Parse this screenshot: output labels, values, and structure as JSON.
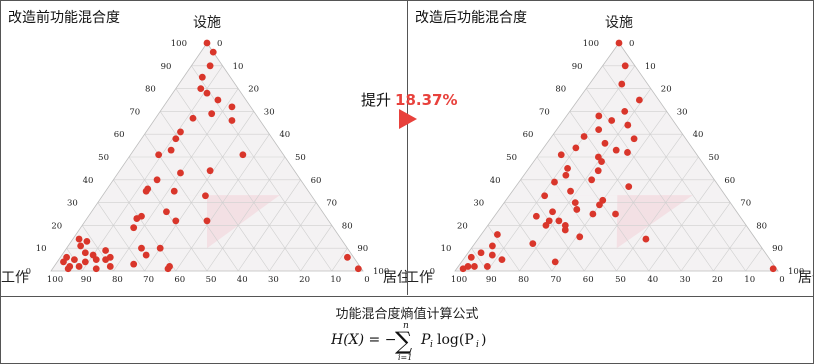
{
  "improvement": {
    "prefix": "提升",
    "value": "18.37%",
    "color": "#e8413c"
  },
  "formula": {
    "title": "功能混合度熵值计算公式",
    "lhs": "H(X) = −",
    "sum_top": "n",
    "sum_bottom": "i=1",
    "term": "P",
    "term_sub": "i",
    "log": "log(P",
    "log_sub": "i",
    "close": ")"
  },
  "chart_data": [
    {
      "type": "scatter",
      "subtype": "ternary",
      "title": "改造前功能混合度",
      "axes": {
        "top": "设施",
        "left": "工作",
        "right": "居住"
      },
      "ticks": [
        0,
        10,
        20,
        30,
        40,
        50,
        60,
        70,
        80,
        90,
        100
      ],
      "grid": true,
      "marker_color": "#d9362b",
      "highlight_region": {
        "color": "#f3d9df",
        "vertices": [
          [
            33.3,
            33.3,
            33.3
          ],
          [
            10,
            45,
            45
          ],
          [
            33.3,
            10,
            56.7
          ],
          [
            33.3,
            56.7,
            10
          ]
        ]
      },
      "points_note": "Each point: [设施, 工作, 居住] in percent",
      "points": [
        [
          100,
          0,
          0
        ],
        [
          96,
          0,
          4
        ],
        [
          90,
          4,
          6
        ],
        [
          85,
          9,
          6
        ],
        [
          80,
          12,
          8
        ],
        [
          78,
          11,
          11
        ],
        [
          75,
          9,
          16
        ],
        [
          72,
          6,
          22
        ],
        [
          69,
          14,
          17
        ],
        [
          67,
          21,
          12
        ],
        [
          66,
          9,
          25
        ],
        [
          61,
          28,
          11
        ],
        [
          58,
          31,
          11
        ],
        [
          53,
          35,
          12
        ],
        [
          51,
          40,
          9
        ],
        [
          51,
          13,
          36
        ],
        [
          44,
          27,
          29
        ],
        [
          43,
          37,
          20
        ],
        [
          40,
          46,
          14
        ],
        [
          36,
          51,
          13
        ],
        [
          35,
          52,
          13
        ],
        [
          35,
          43,
          22
        ],
        [
          33,
          34,
          33
        ],
        [
          26,
          50,
          24
        ],
        [
          24,
          59,
          17
        ],
        [
          23,
          61,
          16
        ],
        [
          22,
          49,
          29
        ],
        [
          22,
          39,
          39
        ],
        [
          19,
          64,
          17
        ],
        [
          14,
          84,
          2
        ],
        [
          13,
          82,
          5
        ],
        [
          11,
          85,
          4
        ],
        [
          10,
          66,
          24
        ],
        [
          10,
          60,
          30
        ],
        [
          9,
          78,
          13
        ],
        [
          8,
          85,
          7
        ],
        [
          7,
          83,
          10
        ],
        [
          7,
          66,
          27
        ],
        [
          6,
          92,
          2
        ],
        [
          6,
          78,
          16
        ],
        [
          5,
          90,
          5
        ],
        [
          5,
          83,
          12
        ],
        [
          5,
          80,
          15
        ],
        [
          4,
          94,
          2
        ],
        [
          4,
          87,
          9
        ],
        [
          3,
          72,
          25
        ],
        [
          2,
          93,
          5
        ],
        [
          2,
          90,
          8
        ],
        [
          2,
          80,
          18
        ],
        [
          2,
          61,
          37
        ],
        [
          1,
          94,
          5
        ],
        [
          1,
          85,
          14
        ],
        [
          1,
          62,
          37
        ],
        [
          6,
          2,
          92
        ],
        [
          1,
          1,
          98
        ]
      ]
    },
    {
      "type": "scatter",
      "subtype": "ternary",
      "title": "改造后功能混合度",
      "axes": {
        "top": "设施",
        "left": "工作",
        "right": "居住"
      },
      "ticks": [
        0,
        10,
        20,
        30,
        40,
        50,
        60,
        70,
        80,
        90,
        100
      ],
      "grid": true,
      "marker_color": "#d9362b",
      "highlight_region": {
        "color": "#f3d9df",
        "vertices": [
          [
            33.3,
            33.3,
            33.3
          ],
          [
            10,
            45,
            45
          ],
          [
            33.3,
            10,
            56.7
          ],
          [
            33.3,
            56.7,
            10
          ]
        ]
      },
      "points_note": "Each point: [设施, 工作, 居住] in percent",
      "points": [
        [
          100,
          0,
          0
        ],
        [
          90,
          3,
          7
        ],
        [
          82,
          8,
          10
        ],
        [
          75,
          6,
          19
        ],
        [
          70,
          13,
          17
        ],
        [
          68,
          22,
          10
        ],
        [
          66,
          19,
          15
        ],
        [
          64,
          15,
          21
        ],
        [
          62,
          25,
          13
        ],
        [
          59,
          31,
          10
        ],
        [
          58,
          16,
          26
        ],
        [
          56,
          26,
          18
        ],
        [
          54,
          36,
          10
        ],
        [
          53,
          24,
          23
        ],
        [
          52,
          21,
          27
        ],
        [
          51,
          42,
          7
        ],
        [
          50,
          31,
          19
        ],
        [
          48,
          31,
          21
        ],
        [
          45,
          43,
          12
        ],
        [
          44,
          34,
          22
        ],
        [
          42,
          45,
          13
        ],
        [
          40,
          38,
          22
        ],
        [
          39,
          50,
          11
        ],
        [
          37,
          28,
          35
        ],
        [
          35,
          47,
          18
        ],
        [
          33,
          56,
          11
        ],
        [
          31,
          39,
          30
        ],
        [
          30,
          48,
          22
        ],
        [
          29,
          41,
          30
        ],
        [
          27,
          49,
          24
        ],
        [
          26,
          57,
          17
        ],
        [
          25,
          45,
          30
        ],
        [
          25,
          38,
          37
        ],
        [
          24,
          63,
          13
        ],
        [
          22,
          60,
          18
        ],
        [
          22,
          57,
          21
        ],
        [
          20,
          62,
          18
        ],
        [
          20,
          56,
          24
        ],
        [
          18,
          57,
          25
        ],
        [
          16,
          79,
          5
        ],
        [
          15,
          54,
          31
        ],
        [
          14,
          34,
          52
        ],
        [
          12,
          70,
          18
        ],
        [
          11,
          83,
          6
        ],
        [
          8,
          88,
          4
        ],
        [
          7,
          85,
          8
        ],
        [
          6,
          92,
          2
        ],
        [
          5,
          83,
          12
        ],
        [
          4,
          67,
          29
        ],
        [
          2,
          95,
          3
        ],
        [
          2,
          93,
          5
        ],
        [
          2,
          89,
          9
        ],
        [
          1,
          97,
          2
        ],
        [
          1,
          1,
          98
        ]
      ]
    }
  ]
}
